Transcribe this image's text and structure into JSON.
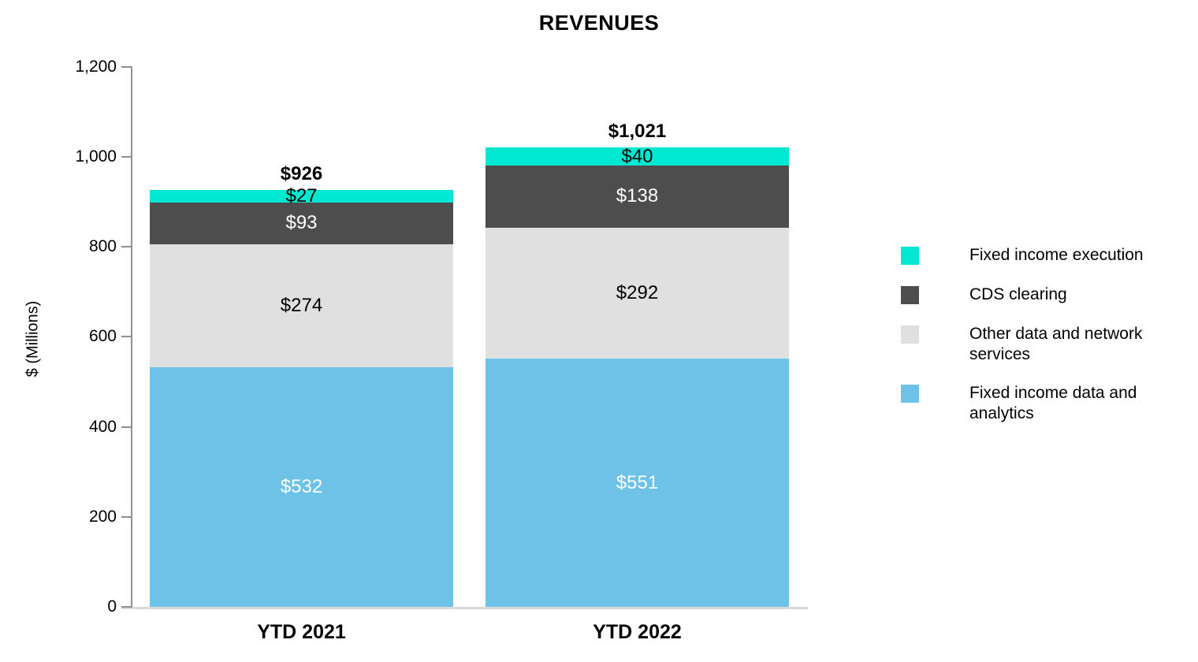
{
  "chart_data": {
    "type": "bar",
    "stacked": true,
    "title": "REVENUES",
    "ylabel": "$ (Millions)",
    "xlabel": "",
    "categories": [
      "YTD 2021",
      "YTD 2022"
    ],
    "series": [
      {
        "name": "Fixed income data and analytics",
        "color": "#6fc2e7",
        "values": [
          532,
          551
        ],
        "labels": [
          "$532",
          "$551"
        ],
        "label_color": "#ffffff"
      },
      {
        "name": "Other data and network services",
        "color": "#e0e0e0",
        "values": [
          274,
          292
        ],
        "labels": [
          "$274",
          "$292"
        ],
        "label_color": "#000000"
      },
      {
        "name": "CDS clearing",
        "color": "#4d4d4d",
        "values": [
          93,
          138
        ],
        "labels": [
          "$93",
          "$138"
        ],
        "label_color": "#ffffff"
      },
      {
        "name": "Fixed income execution",
        "color": "#00e8d1",
        "values": [
          27,
          40
        ],
        "labels": [
          "$27",
          "$40"
        ],
        "label_color": "#000000"
      }
    ],
    "totals": [
      "$926",
      "$1,021"
    ],
    "ylim": [
      0,
      1200
    ],
    "ytick_step": 200,
    "yticks": [
      "0",
      "200",
      "400",
      "600",
      "800",
      "1,000",
      "1,200"
    ],
    "grid": false,
    "legend_position": "right"
  },
  "legend": {
    "items": [
      {
        "label": "Fixed income execution",
        "color": "#00e8d1"
      },
      {
        "label": "CDS clearing",
        "color": "#4d4d4d"
      },
      {
        "label": "Other data and network services",
        "color": "#e0e0e0"
      },
      {
        "label": "Fixed income data and analytics",
        "color": "#6fc2e7"
      }
    ]
  }
}
